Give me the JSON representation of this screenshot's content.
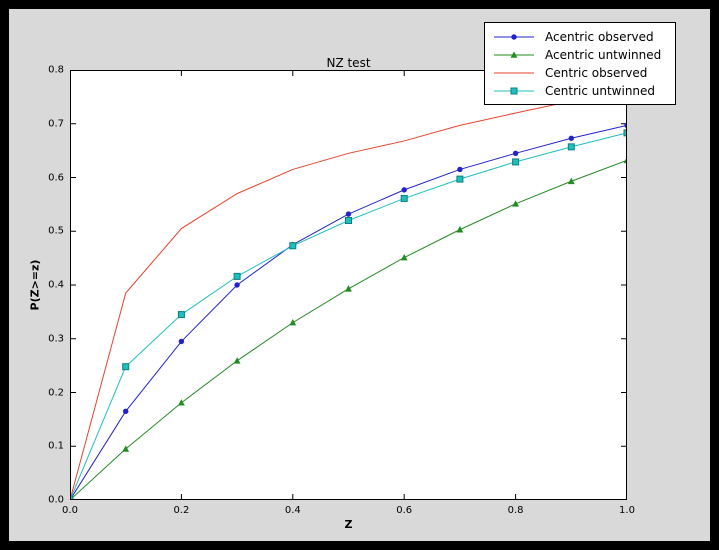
{
  "colors": {
    "page_bg": "#000000",
    "figure_bg": "#d9d9d9",
    "plot_bg": "#ffffff",
    "axis": "#000000",
    "legend_bg": "#ffffff",
    "legend_border": "#000000"
  },
  "chart_data": {
    "type": "line",
    "title": "NZ test",
    "xlabel": "Z",
    "ylabel": "P(Z>=z)",
    "xlim": [
      0.0,
      1.0
    ],
    "ylim": [
      0.0,
      0.8
    ],
    "grid": false,
    "legend_position": "upper right",
    "xticks": [
      "0.0",
      "0.2",
      "0.4",
      "0.6",
      "0.8",
      "1.0"
    ],
    "yticks": [
      "0.0",
      "0.1",
      "0.2",
      "0.3",
      "0.4",
      "0.5",
      "0.6",
      "0.7",
      "0.8"
    ],
    "x": [
      0.0,
      0.1,
      0.2,
      0.3,
      0.4,
      0.5,
      0.6,
      0.7,
      0.8,
      0.9,
      1.0
    ],
    "series": [
      {
        "name": "Acentric observed",
        "color": "#2222cc",
        "marker": "circle",
        "values": [
          0.0,
          0.165,
          0.295,
          0.4,
          0.475,
          0.532,
          0.577,
          0.615,
          0.645,
          0.673,
          0.697
        ]
      },
      {
        "name": "Acentric untwinned",
        "color": "#228b22",
        "marker": "triangle-up",
        "values": [
          0.0,
          0.095,
          0.181,
          0.259,
          0.33,
          0.393,
          0.451,
          0.503,
          0.551,
          0.593,
          0.632
        ]
      },
      {
        "name": "Centric observed",
        "color": "#e8432b",
        "marker": "none",
        "values": [
          0.0,
          0.385,
          0.505,
          0.57,
          0.615,
          0.645,
          0.668,
          0.697,
          0.72,
          0.742,
          0.757
        ]
      },
      {
        "name": "Centric untwinned",
        "color": "#1fbfbf",
        "marker": "square",
        "marker_edge": "#0a8080",
        "values": [
          0.0,
          0.248,
          0.345,
          0.416,
          0.473,
          0.52,
          0.561,
          0.597,
          0.629,
          0.657,
          0.683
        ]
      }
    ]
  }
}
